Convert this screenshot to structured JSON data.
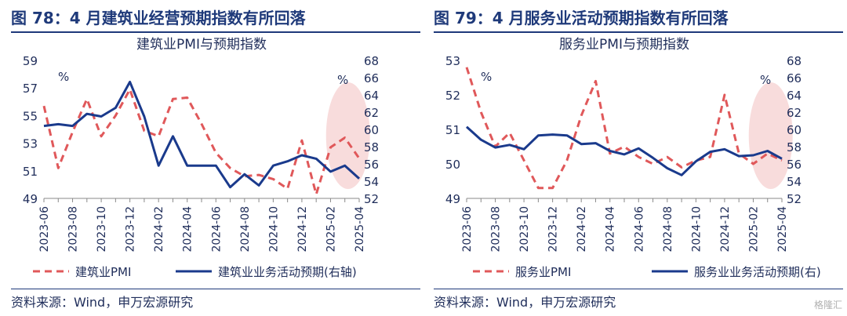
{
  "panels": [
    {
      "heading": "图 78：4 月建筑业经营预期指数有所回落",
      "source": "资料来源：Wind，申万宏源研究"
    },
    {
      "heading": "图 79：4 月服务业活动预期指数有所回落",
      "source": "资料来源：Wind，申万宏源研究"
    }
  ],
  "watermark": "格隆汇",
  "colors": {
    "red": "#e0585a",
    "navy": "#1a3a8c",
    "ellipse": "#f5c9c9"
  },
  "chart_data": [
    {
      "type": "line",
      "title": "建筑业PMI与预期指数",
      "x": [
        "2023-06",
        "2023-07",
        "2023-08",
        "2023-09",
        "2023-10",
        "2023-11",
        "2023-12",
        "2024-01",
        "2024-02",
        "2024-03",
        "2024-04",
        "2024-05",
        "2024-06",
        "2024-07",
        "2024-08",
        "2024-09",
        "2024-10",
        "2024-11",
        "2024-12",
        "2025-01",
        "2025-02",
        "2025-03",
        "2025-04"
      ],
      "xticks": [
        "2023-06",
        "2023-08",
        "2023-10",
        "2023-12",
        "2024-02",
        "2024-04",
        "2024-06",
        "2024-08",
        "2024-10",
        "2024-12",
        "2025-02",
        "2025-04"
      ],
      "left_axis": {
        "unit": "%",
        "min": 49,
        "max": 59,
        "ticks": [
          49,
          51,
          53,
          55,
          57,
          59
        ]
      },
      "right_axis": {
        "min": 52,
        "max": 68,
        "ticks": [
          52,
          54,
          56,
          58,
          60,
          62,
          64,
          66,
          68
        ]
      },
      "series": [
        {
          "name": "建筑业PMI",
          "axis": "left",
          "style": "dashed",
          "color": "#e0585a",
          "values": [
            55.7,
            51.2,
            53.8,
            56.2,
            53.5,
            55.0,
            56.9,
            53.9,
            53.5,
            56.2,
            56.3,
            54.4,
            52.3,
            51.2,
            50.6,
            50.7,
            50.4,
            49.7,
            53.2,
            49.3,
            52.7,
            53.4,
            51.9
          ]
        },
        {
          "name": "建筑业业务活动预期(右轴)",
          "axis": "right",
          "style": "solid",
          "color": "#1a3a8c",
          "values": [
            60.4,
            60.6,
            60.4,
            61.8,
            61.5,
            62.5,
            65.5,
            61.5,
            55.8,
            59.2,
            55.8,
            55.8,
            55.8,
            53.3,
            54.8,
            53.5,
            55.8,
            56.3,
            57.0,
            56.6,
            55.1,
            55.8,
            54.3
          ]
        }
      ],
      "annotation": "highlight ellipse over 2025-02 to 2025-04"
    },
    {
      "type": "line",
      "title": "服务业PMI与预期指数",
      "x": [
        "2023-06",
        "2023-07",
        "2023-08",
        "2023-09",
        "2023-10",
        "2023-11",
        "2023-12",
        "2024-01",
        "2024-02",
        "2024-03",
        "2024-04",
        "2024-05",
        "2024-06",
        "2024-07",
        "2024-08",
        "2024-09",
        "2024-10",
        "2024-11",
        "2024-12",
        "2025-01",
        "2025-02",
        "2025-03",
        "2025-04"
      ],
      "xticks": [
        "2023-06",
        "2023-08",
        "2023-10",
        "2023-12",
        "2024-02",
        "2024-04",
        "2024-06",
        "2024-08",
        "2024-10",
        "2024-12",
        "2025-02",
        "2025-04"
      ],
      "left_axis": {
        "unit": "%",
        "min": 49,
        "max": 53,
        "ticks": [
          49,
          50,
          51,
          52,
          53
        ]
      },
      "right_axis": {
        "unit": "%",
        "min": 52,
        "max": 68,
        "ticks": [
          52,
          54,
          56,
          58,
          60,
          62,
          64,
          66,
          68
        ]
      },
      "series": [
        {
          "name": "服务业PMI",
          "axis": "left",
          "style": "dashed",
          "color": "#e0585a",
          "values": [
            52.8,
            51.5,
            50.5,
            50.9,
            50.1,
            49.3,
            49.3,
            50.1,
            51.4,
            52.4,
            50.3,
            50.5,
            50.2,
            50.0,
            50.2,
            49.9,
            50.1,
            50.2,
            52.0,
            50.3,
            50.0,
            50.3,
            50.1
          ]
        },
        {
          "name": "服务业业务活动预期(右)",
          "axis": "right",
          "style": "solid",
          "color": "#1a3a8c",
          "values": [
            60.3,
            58.8,
            57.9,
            58.2,
            57.7,
            59.3,
            59.4,
            59.3,
            58.3,
            58.4,
            57.5,
            57.1,
            57.8,
            56.7,
            55.5,
            54.7,
            56.3,
            57.4,
            57.7,
            56.9,
            57.0,
            57.5,
            56.6
          ]
        }
      ],
      "annotation": "highlight ellipse over 2025-02 to 2025-04"
    }
  ]
}
